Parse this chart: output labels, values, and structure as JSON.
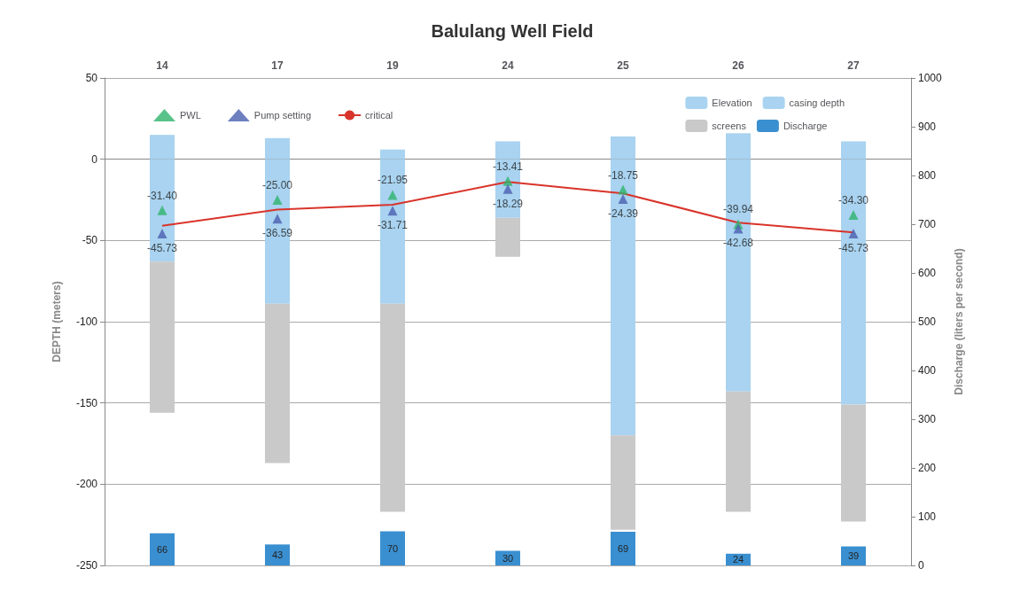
{
  "chart_data": {
    "type": "bar",
    "title": "Balulang Well Field",
    "categories": [
      "14",
      "17",
      "19",
      "24",
      "25",
      "26",
      "27"
    ],
    "ylabel": "DEPTH (meters)",
    "y2label": "Discharge (liters per second)",
    "ylim": [
      -250,
      50
    ],
    "yticks": [
      -250,
      -200,
      -150,
      -100,
      -50,
      0,
      50
    ],
    "y2lim": [
      0,
      1000
    ],
    "y2ticks": [
      0,
      100,
      200,
      300,
      400,
      500,
      600,
      700,
      800,
      900,
      1000
    ],
    "stacked": true,
    "grid": "y",
    "legend": "top right",
    "series": [
      {
        "name": "Elevation",
        "color": "#a9d3f0",
        "values": [
          15,
          13,
          6,
          11,
          14,
          16,
          11
        ]
      },
      {
        "name": "casing depth",
        "color": "#a9d3f0",
        "values": [
          -63,
          -89,
          -89,
          -36,
          -170,
          -143,
          -151
        ]
      },
      {
        "name": "screens",
        "color": "#c9c9c9",
        "values": [
          -93,
          -98,
          -128,
          -24,
          -58,
          -74,
          -72
        ]
      },
      {
        "name": "Discharge",
        "axis": "y2",
        "color": "#3a8fd0",
        "values": [
          66,
          43,
          70,
          30,
          69,
          24,
          39
        ],
        "data_labels": true
      },
      {
        "name": "PWL",
        "type": "scatter",
        "marker": "triangle",
        "color": "#2eb36b",
        "values": [
          -31.4,
          -25.0,
          -21.95,
          -13.41,
          -18.75,
          -39.94,
          -34.3
        ],
        "value_labels": [
          "-31.40",
          "-25.00",
          "-21.95",
          "-13.41",
          "-18.75",
          "-39.94",
          "-34.30"
        ]
      },
      {
        "name": "Pump setting",
        "type": "scatter",
        "marker": "triangle",
        "color": "#4a5fb0",
        "values": [
          -45.73,
          -36.59,
          -31.71,
          -18.29,
          -24.39,
          -42.68,
          -45.73
        ],
        "value_labels": [
          "-45.73",
          "-36.59",
          "-31.71",
          "-18.29",
          "-24.39",
          "-42.68",
          "-45.73"
        ]
      },
      {
        "name": "critical",
        "type": "line",
        "marker": "none",
        "line_style": "solid",
        "color": "#d9342b",
        "values": [
          -41,
          -31,
          -28,
          -14,
          -21,
          -39,
          -45
        ]
      }
    ]
  }
}
